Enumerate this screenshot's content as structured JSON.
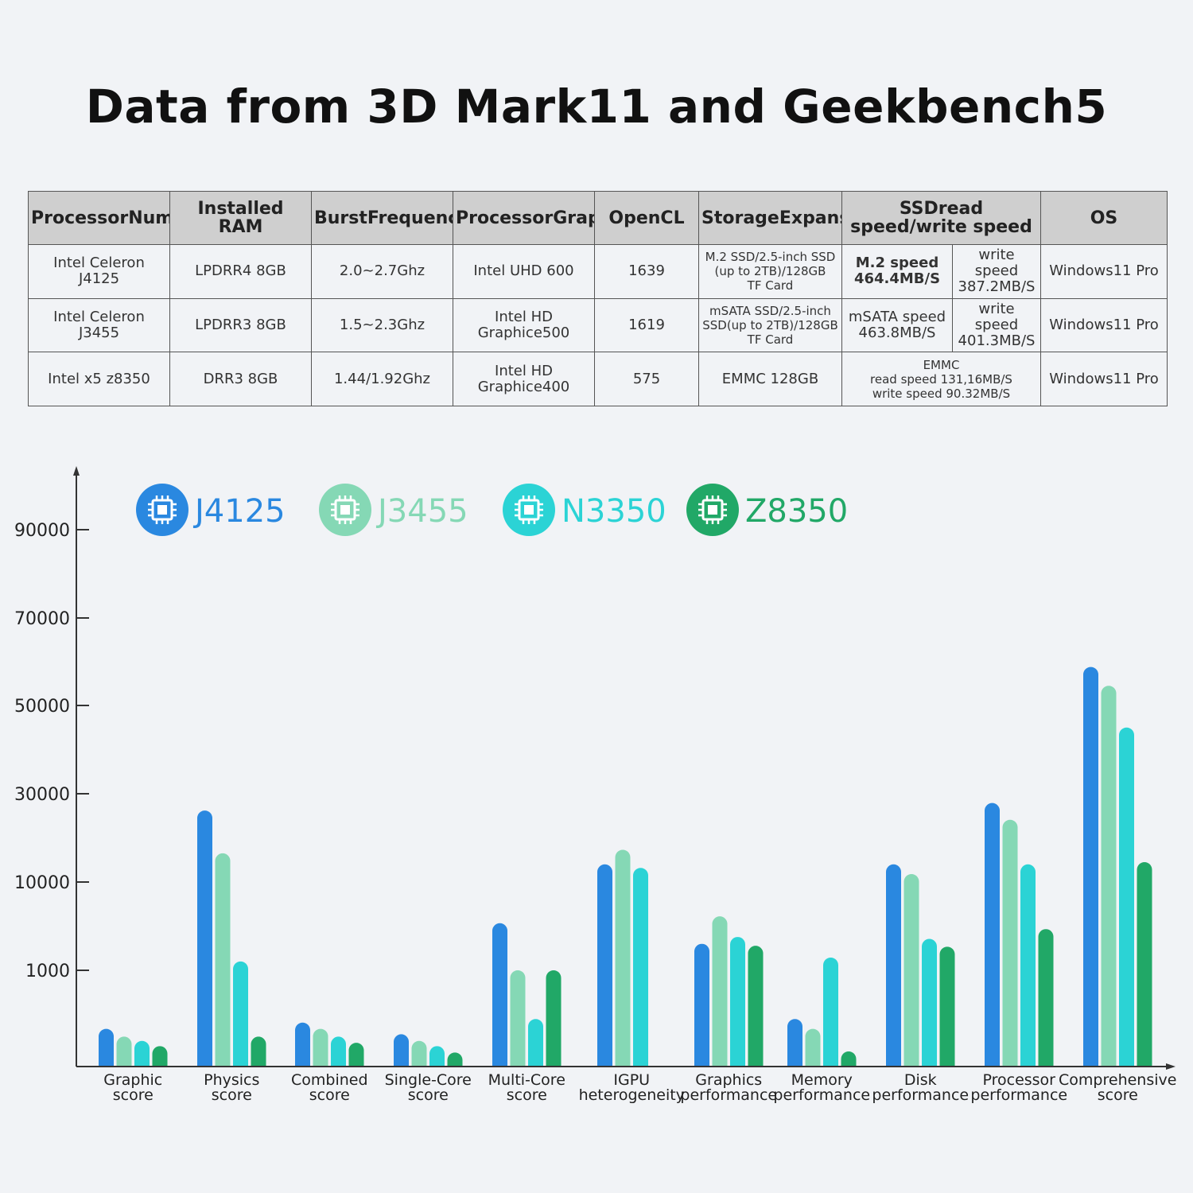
{
  "title": "Data from 3D Mark11 and Geekbench5",
  "table": {
    "headers": [
      [
        "Processor",
        "Number"
      ],
      [
        "Installed RAM"
      ],
      [
        "Burst",
        "Frequency"
      ],
      [
        "Processor",
        "Graphics"
      ],
      [
        "OpenCL"
      ],
      [
        "Storage",
        "Expansion"
      ],
      [
        "SSDread speed/",
        "write speed"
      ],
      [
        "OS"
      ]
    ],
    "rows": [
      {
        "processor": "Intel Celeron J4125",
        "ram": "LPDRR4 8GB",
        "frequency": "2.0~2.7Ghz",
        "graphics": "Intel UHD 600",
        "opencl": "1639",
        "storage": [
          "M.2 SSD/2.5-inch SSD",
          "(up to 2TB)/128GB",
          "TF Card"
        ],
        "read": [
          "M.2 speed",
          "464.4MB/S"
        ],
        "write": [
          "write speed",
          "387.2MB/S"
        ],
        "os": "Windows11 Pro"
      },
      {
        "processor": "Intel Celeron J3455",
        "ram": "LPDRR3 8GB",
        "frequency": "1.5~2.3Ghz",
        "graphics": "Intel HD Graphice500",
        "opencl": "1619",
        "storage": [
          "mSATA SSD/2.5-inch",
          "SSD(up to 2TB)/128GB",
          "TF Card"
        ],
        "read": [
          "mSATA speed",
          "463.8MB/S"
        ],
        "write": [
          "write speed",
          "401.3MB/S"
        ],
        "os": "Windows11 Pro"
      },
      {
        "processor": "Intel x5 z8350",
        "ram": "DRR3 8GB",
        "frequency": "1.44/1.92Ghz",
        "graphics": "Intel HD Graphice400",
        "opencl": "575",
        "storage": [
          "EMMC 128GB"
        ],
        "speed": [
          "EMMC",
          "read speed 131,16MB/S",
          "write speed 90.32MB/S"
        ],
        "os": "Windows11 Pro"
      }
    ]
  },
  "chart_data": {
    "type": "bar",
    "title": "",
    "xlabel": "",
    "ylabel": "",
    "yticks": [
      "90000",
      "70000",
      "50000",
      "30000",
      "10000",
      "1000"
    ],
    "categories": [
      [
        "Graphic",
        "score"
      ],
      [
        "Physics",
        "score"
      ],
      [
        "Combined",
        "score"
      ],
      [
        "Single-Core",
        "score"
      ],
      [
        "Multi-Core",
        "score"
      ],
      [
        "IGPU",
        "heterogeneity"
      ],
      [
        "Graphics",
        "performance"
      ],
      [
        "Memory",
        "performance"
      ],
      [
        "Disk",
        "performance"
      ],
      [
        "Processor",
        "performance"
      ],
      [
        "Comprehensive",
        "score"
      ]
    ],
    "series": [
      {
        "name": "J4125",
        "color": "#2a88e0",
        "values": [
          -0.6,
          26200,
          -0.4,
          -0.8,
          5800,
          14000,
          3700,
          -0.3,
          14000,
          27900,
          58800
        ]
      },
      {
        "name": "J3455",
        "color": "#85d8b5",
        "values": [
          -0.9,
          16500,
          -0.6,
          -1.1,
          1000,
          17300,
          6500,
          -0.6,
          11800,
          24100,
          54500
        ]
      },
      {
        "name": "N3350",
        "color": "#2bd3d5",
        "values": [
          -1.1,
          1900,
          -0.9,
          -1.4,
          -0.3,
          13200,
          4400,
          2300,
          4200,
          14000,
          45000
        ]
      },
      {
        "name": "Z8350",
        "color": "#21a867",
        "values": [
          -1.4,
          -0.9,
          -1.2,
          -1.9,
          1000,
          null,
          3500,
          -1.8,
          3400,
          5200,
          14500
        ]
      }
    ]
  }
}
